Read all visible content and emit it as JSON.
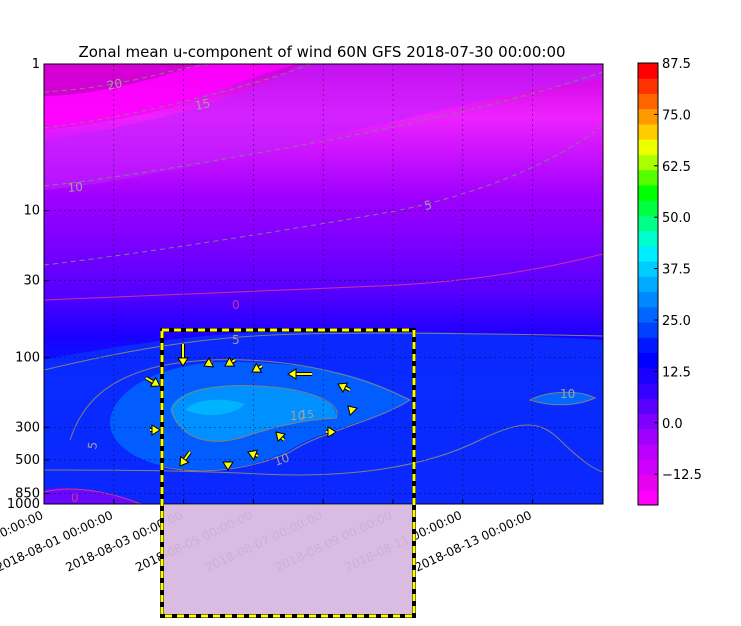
{
  "chart_data": {
    "type": "contour",
    "title": "Zonal mean u-component of wind 60N GFS 2018-07-30 00:00:00",
    "xlabel": "",
    "ylabel": "",
    "x_tick_labels": [
      "2018-07-30 00:00:00",
      "2018-08-01 00:00:00",
      "2018-08-03 00:00:00",
      "2018-08-05 00:00:00",
      "2018-08-07 00:00:00",
      "2018-08-09 00:00:00",
      "2018-08-11 00:00:00",
      "2018-08-13 00:00:00"
    ],
    "y_tick_labels": [
      "1",
      "10",
      "30",
      "100",
      "300",
      "500",
      "850",
      "1000"
    ],
    "y_ticks_hpa": [
      1,
      10,
      30,
      100,
      300,
      500,
      850,
      1000
    ],
    "y_scale": "log (pressure, inverted)",
    "colorbar": {
      "tick_labels": [
        "87.5",
        "75.0",
        "62.5",
        "50.0",
        "37.5",
        "25.0",
        "12.5",
        "0.0",
        "−12.5"
      ],
      "min": -20,
      "max": 87.5,
      "colors": [
        "#ff00ff",
        "#e800f0",
        "#d000ff",
        "#bb00ff",
        "#a000ff",
        "#8000ff",
        "#5a00ff",
        "#3400ff",
        "#1a00ff",
        "#0000ff",
        "#0018ff",
        "#0040ff",
        "#0066ff",
        "#0088ff",
        "#00aaff",
        "#00ccff",
        "#00eeff",
        "#00ffcc",
        "#00ff88",
        "#00ff40",
        "#00ff00",
        "#55ff00",
        "#aaff00",
        "#eeff00",
        "#ffcc00",
        "#ff9900",
        "#ff6600",
        "#ff3300",
        "#ff0000"
      ]
    },
    "contour_labels": [
      {
        "text": "20"
      },
      {
        "text": "15"
      },
      {
        "text": "10"
      },
      {
        "text": "5"
      },
      {
        "text": "0"
      },
      {
        "text": "5"
      },
      {
        "text": "10"
      },
      {
        "text": "15"
      },
      {
        "text": "10"
      },
      {
        "text": "5"
      },
      {
        "text": "0"
      },
      {
        "text": "10"
      }
    ],
    "annotation": {
      "type": "dashed-box",
      "color": "#ffff00",
      "border": "#000000",
      "arrows_color": "#ffff00"
    },
    "grid": true
  }
}
